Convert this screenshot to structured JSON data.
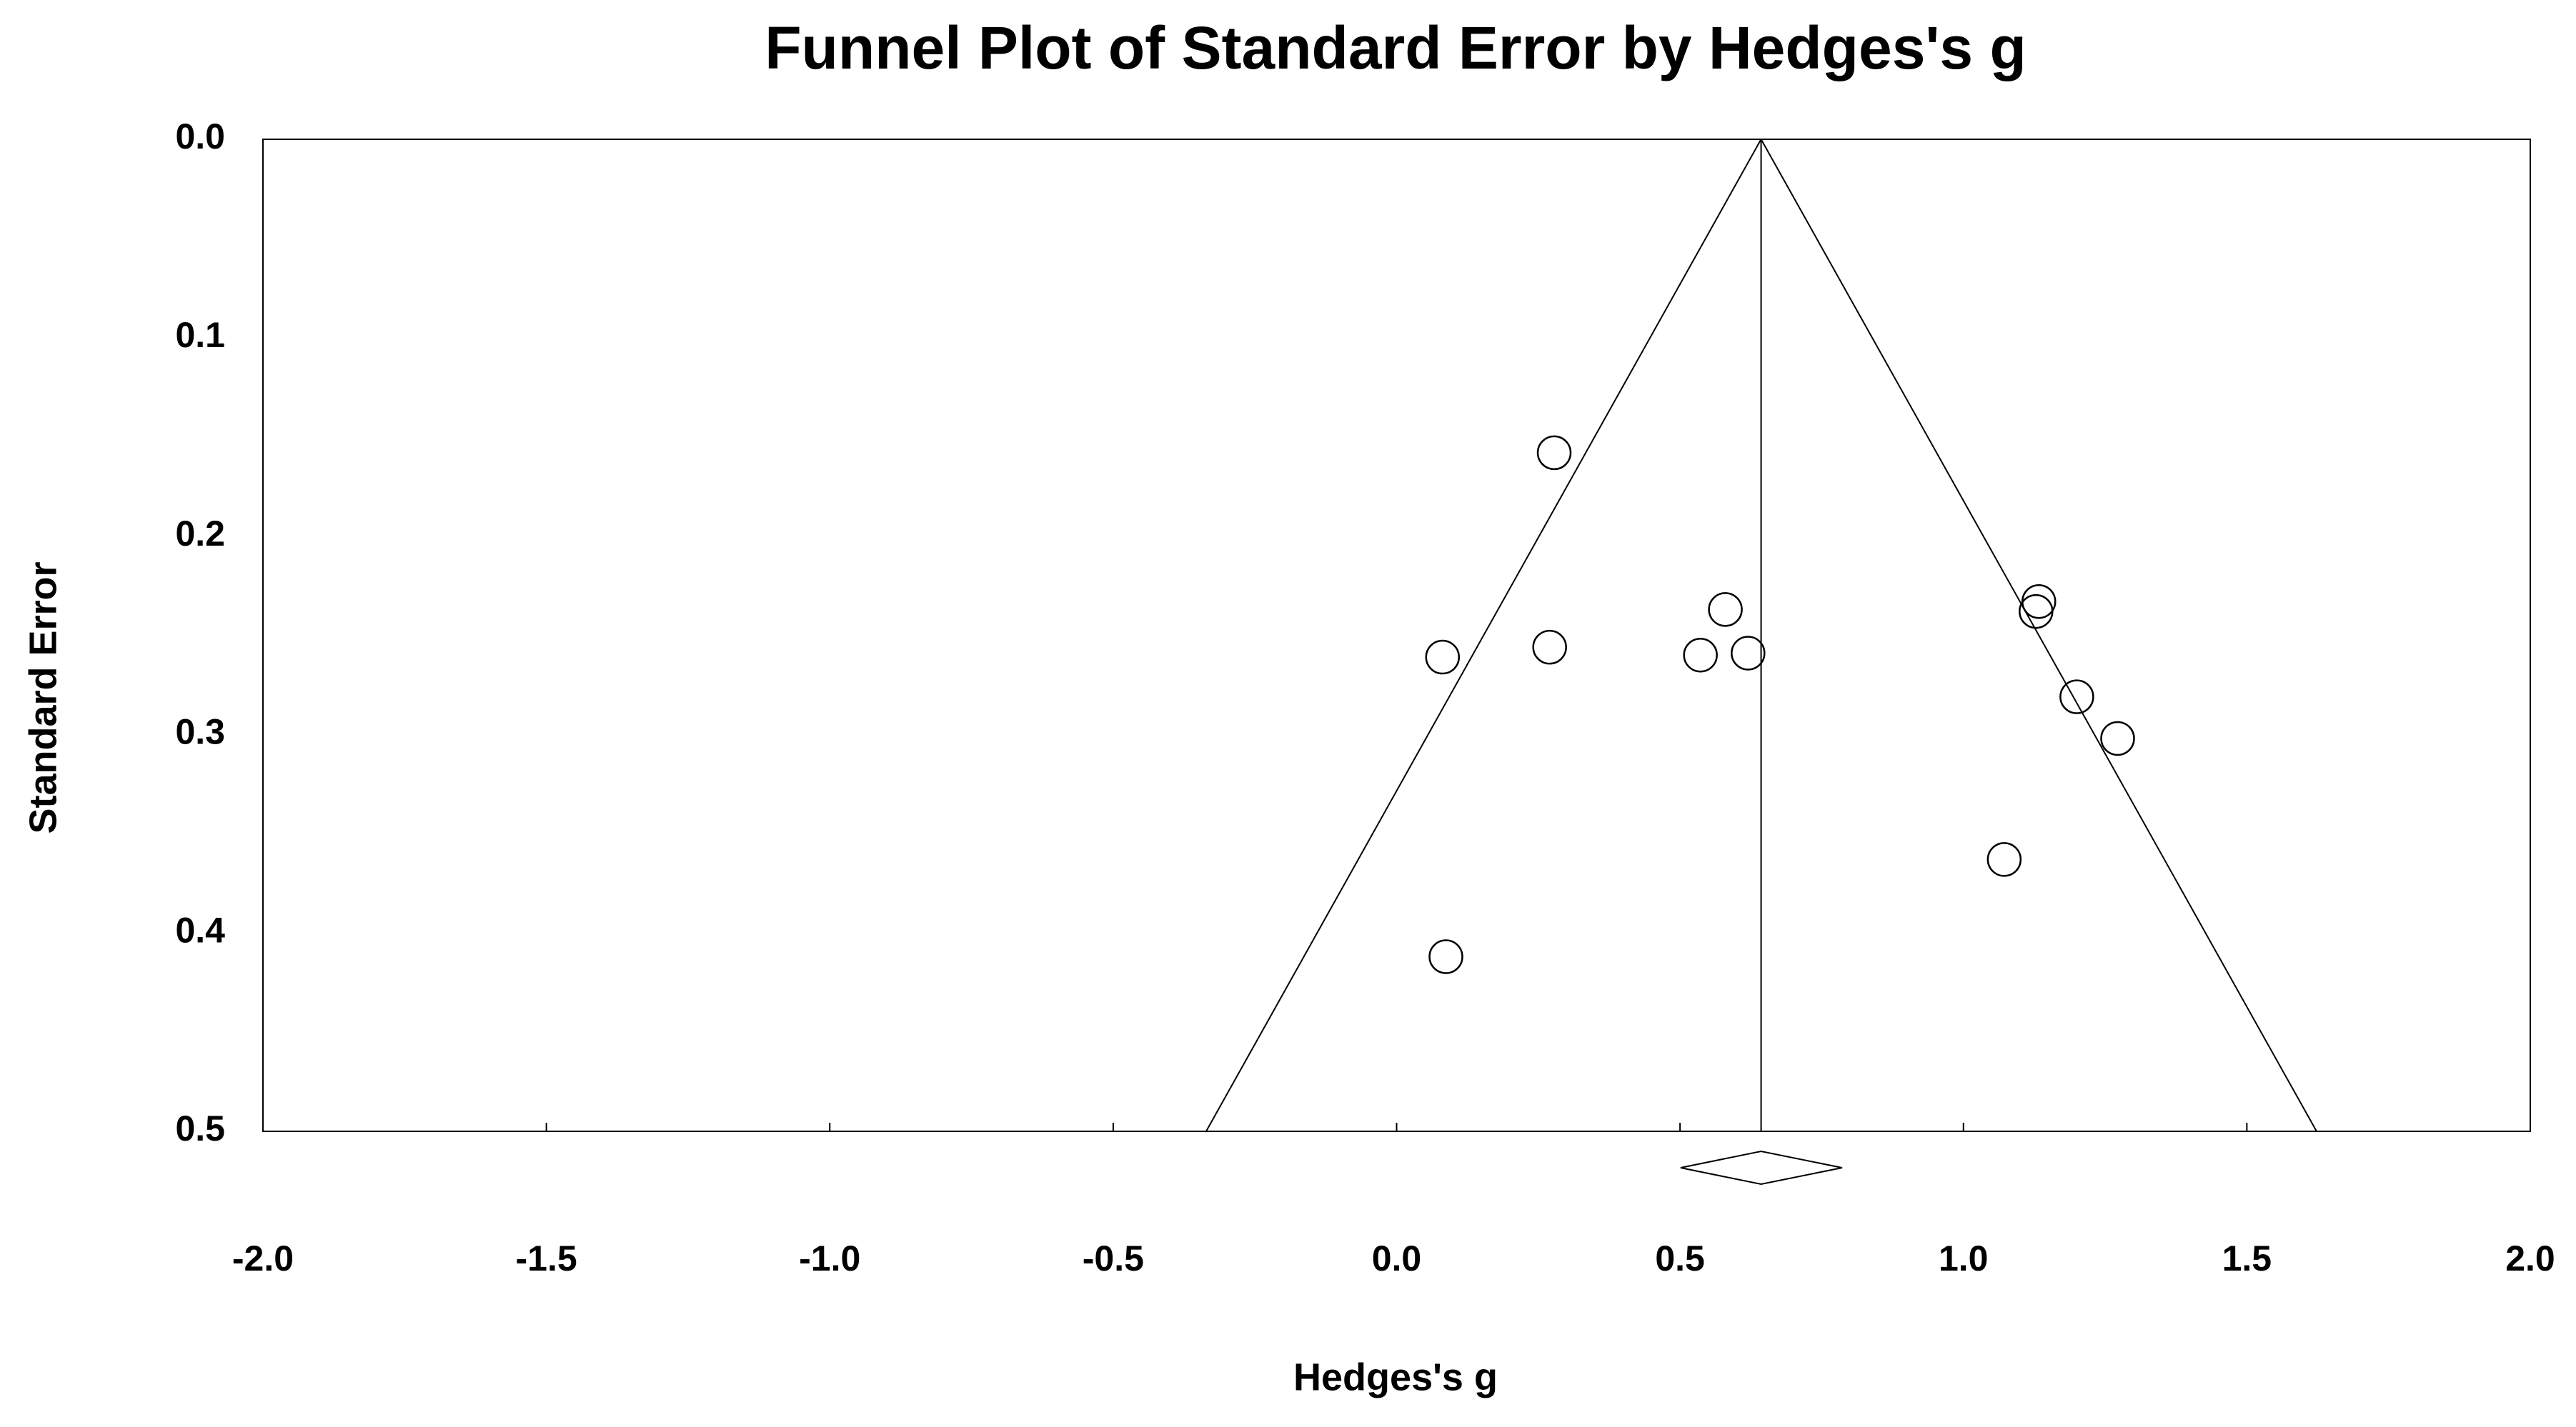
{
  "chart_data": {
    "type": "scatter",
    "title": "Funnel Plot of Standard Error by Hedges's g",
    "x_label": "Hedges's g",
    "y_label": "Standard Error",
    "x": [
      0.278,
      0.081,
      0.27,
      0.58,
      0.536,
      0.62,
      1.133,
      1.128,
      1.2,
      1.272,
      1.072,
      0.087
    ],
    "y": [
      0.158,
      0.261,
      0.256,
      0.237,
      0.26,
      0.259,
      0.233,
      0.238,
      0.281,
      0.302,
      0.363,
      0.412
    ],
    "color": "#000000",
    "summary_effect": 0.643,
    "summary_ci": [
      0.501,
      0.786
    ],
    "funnel_bottom": [
      -0.336,
      1.623
    ],
    "xlim": [
      -2,
      2
    ],
    "xticks": [
      {
        "value": -2,
        "label": "-2.0"
      },
      -1.5,
      {
        "value": -1,
        "label": "-1.0"
      },
      -0.5,
      {
        "value": 0,
        "label": "0.0"
      },
      0.5,
      {
        "value": 1,
        "label": "1.0"
      },
      1.5,
      {
        "value": 2,
        "label": "2.0"
      }
    ],
    "ylim": [
      0,
      0.5
    ],
    "y_inverted": true,
    "yticks": [
      {
        "value": 0,
        "label": "0.0"
      },
      0.1,
      0.2,
      0.3,
      0.4,
      0.5
    ]
  }
}
